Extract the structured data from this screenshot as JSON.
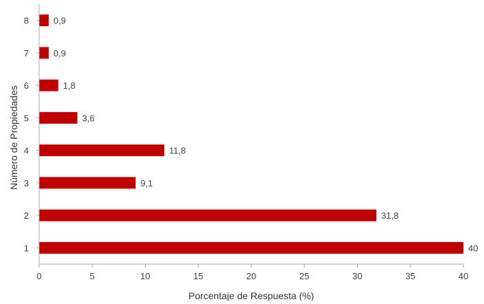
{
  "chart_data": {
    "type": "bar",
    "orientation": "horizontal",
    "categories": [
      "1",
      "2",
      "3",
      "4",
      "5",
      "6",
      "7",
      "8"
    ],
    "values": [
      40,
      31.8,
      9.1,
      11.8,
      3.6,
      1.8,
      0.9,
      0.9
    ],
    "value_labels": [
      "40",
      "31,8",
      "9,1",
      "11,8",
      "3,6",
      "1,8",
      "0,9",
      "0,9"
    ],
    "xlabel": "Porcentaje de Respuesta (%)",
    "ylabel": "Número de Propiedades",
    "xlim": [
      0,
      40
    ],
    "xticks": [
      0,
      5,
      10,
      15,
      20,
      25,
      30,
      35,
      40
    ],
    "grid": false,
    "bar_color": "#c00000"
  }
}
